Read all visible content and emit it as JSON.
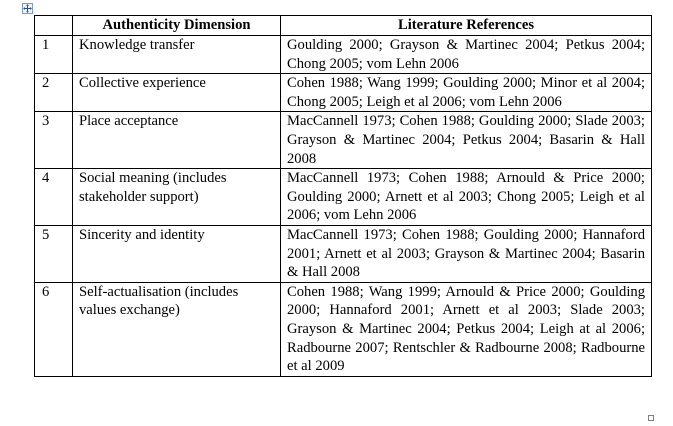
{
  "table": {
    "headers": [
      "",
      "Authenticity Dimension",
      "Literature References"
    ],
    "rows": [
      {
        "num": "1",
        "dimension": "Knowledge transfer",
        "references": "Goulding 2000; Grayson & Martinec 2004; Petkus 2004; Chong 2005; vom Lehn 2006"
      },
      {
        "num": "2",
        "dimension": "Collective experience",
        "references": "Cohen 1988; Wang 1999; Goulding 2000; Minor et al 2004; Chong 2005; Leigh et al 2006; vom Lehn 2006"
      },
      {
        "num": "3",
        "dimension": "Place acceptance",
        "references": "MacCannell 1973; Cohen 1988; Goulding 2000; Slade 2003; Grayson & Martinec 2004; Petkus 2004; Basarin & Hall 2008"
      },
      {
        "num": "4",
        "dimension": "Social meaning (includes stakeholder support)",
        "references": "MacCannell 1973; Cohen 1988; Arnould & Price 2000; Goulding 2000; Arnett et al 2003; Chong 2005; Leigh et al 2006; vom Lehn 2006"
      },
      {
        "num": "5",
        "dimension": "Sincerity and identity",
        "references": "MacCannell 1973; Cohen 1988; Goulding 2000; Hannaford 2001; Arnett et al 2003; Grayson & Martinec 2004; Basarin & Hall 2008"
      },
      {
        "num": "6",
        "dimension": "Self-actualisation (includes values exchange)",
        "references": "Cohen 1988; Wang 1999; Arnould & Price 2000; Goulding 2000; Hannaford 2001; Arnett et al 2003; Slade 2003; Grayson & Martinec 2004; Petkus 2004; Leigh at al 2006; Radbourne 2007; Rentschler & Radbourne 2008; Radbourne et al 2009"
      }
    ]
  }
}
